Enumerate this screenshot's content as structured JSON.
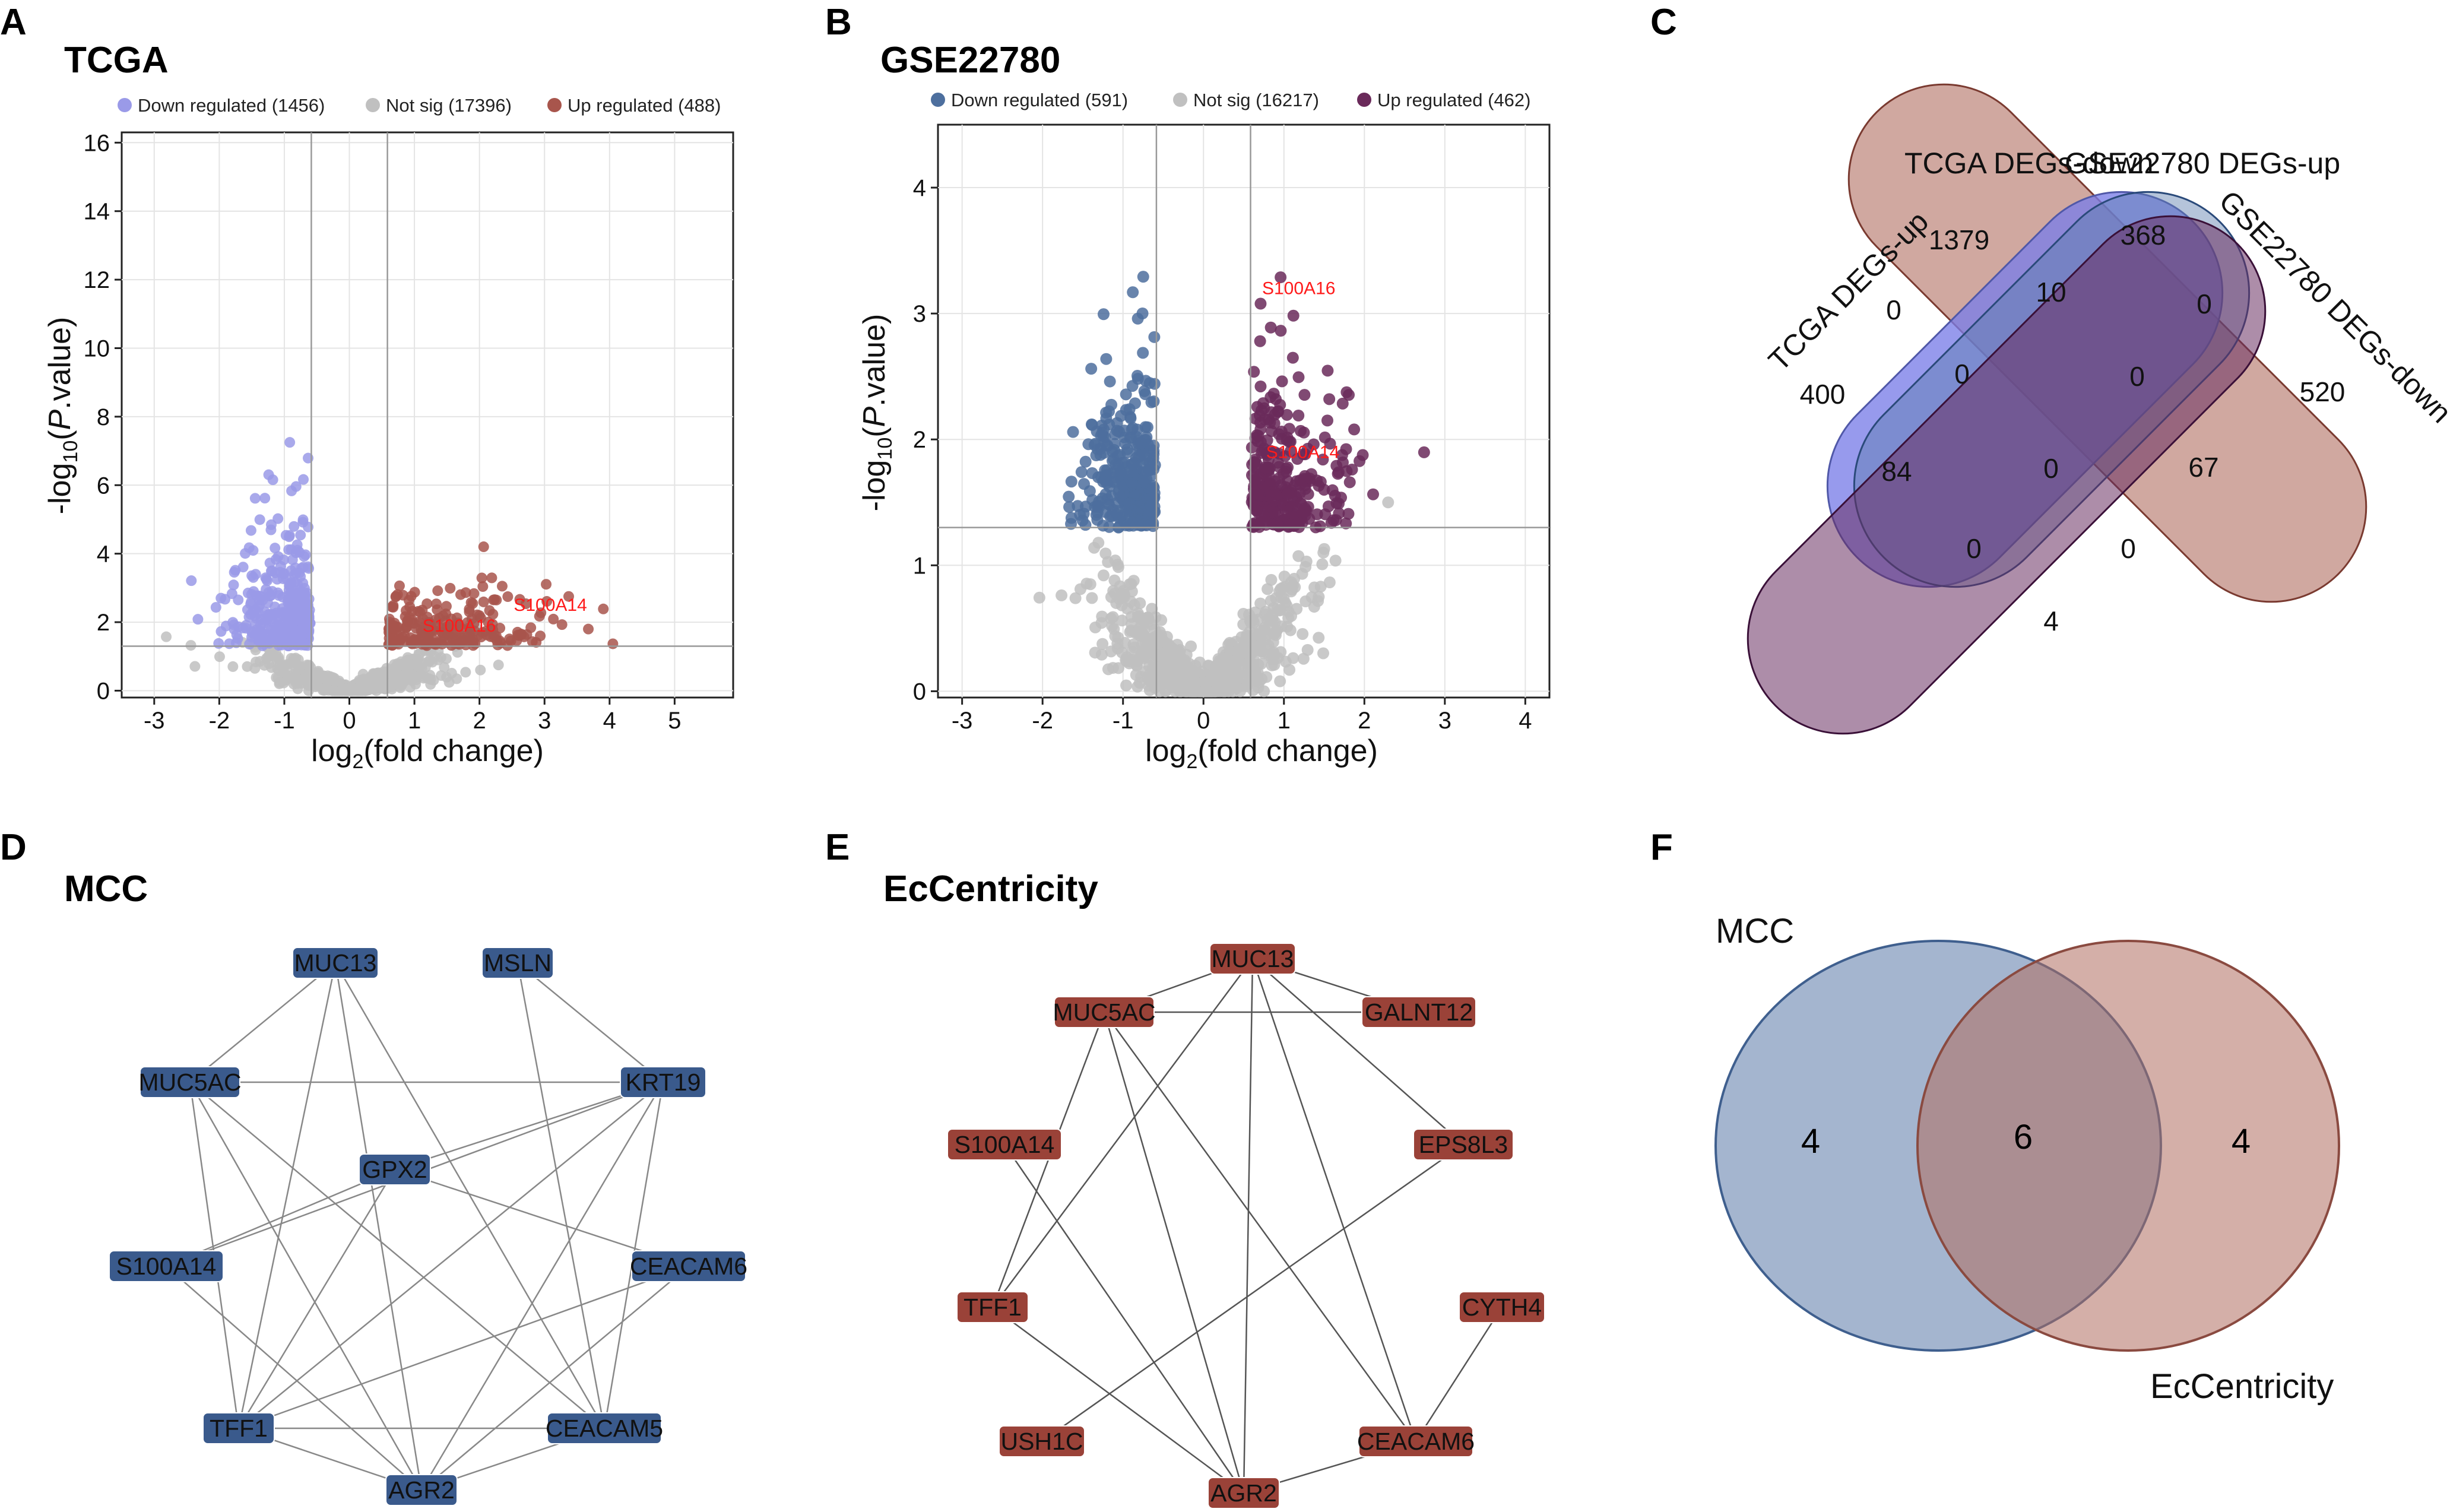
{
  "chart_data": [
    {
      "panel": "A",
      "type": "scatter",
      "title": "TCGA",
      "xlabel": "log2(fold change)",
      "ylabel": "-log10(P.value)",
      "xlim": [
        -3.5,
        5.9
      ],
      "ylim": [
        -0.2,
        16.3
      ],
      "xticks": [
        -3,
        -2,
        -1,
        0,
        1,
        2,
        3,
        4,
        5
      ],
      "yticks": [
        0,
        2,
        4,
        6,
        8,
        10,
        12,
        14,
        16
      ],
      "thresholds": {
        "x": [
          -0.585,
          0.585
        ],
        "y": 1.3
      },
      "legend": [
        {
          "label": "Down regulated (1456)",
          "color": "#9a9ae8"
        },
        {
          "label": "Not sig (17396)",
          "color": "#c0c0c0"
        },
        {
          "label": "Up regulated (488)",
          "color": "#a8554c"
        }
      ],
      "counts": {
        "down": 1456,
        "notsig": 17396,
        "up": 488
      },
      "labeled_points": [
        {
          "gene": "S100A14",
          "x": 2.8,
          "y": 2.5
        },
        {
          "gene": "S100A16",
          "x": 1.4,
          "y": 1.9
        }
      ]
    },
    {
      "panel": "B",
      "type": "scatter",
      "title": "GSE22780",
      "xlabel": "log2(fold change)",
      "ylabel": "-log10(P.value)",
      "xlim": [
        -3.3,
        4.3
      ],
      "ylim": [
        -0.05,
        4.5
      ],
      "xticks": [
        -3,
        -2,
        -1,
        0,
        1,
        2,
        3,
        4
      ],
      "yticks": [
        0,
        1,
        2,
        3,
        4
      ],
      "thresholds": {
        "x": [
          -0.585,
          0.585
        ],
        "y": 1.3
      },
      "legend": [
        {
          "label": "Down regulated (591)",
          "color": "#4d6f9e"
        },
        {
          "label": "Not sig (16217)",
          "color": "#c0c0c0"
        },
        {
          "label": "Up regulated (462)",
          "color": "#6a2a5a"
        }
      ],
      "counts": {
        "down": 591,
        "notsig": 16217,
        "up": 462
      },
      "labeled_points": [
        {
          "gene": "S100A16",
          "x": 0.95,
          "y": 3.2
        },
        {
          "gene": "S100A14",
          "x": 1.0,
          "y": 1.9
        }
      ]
    },
    {
      "panel": "C",
      "type": "venn",
      "sets": [
        "TCGA DEGs-up",
        "TCGA DEGs-down",
        "GSE22780 DEGs-up",
        "GSE22780 DEGs-down"
      ],
      "region_values": [
        "1379",
        "368",
        "0",
        "0",
        "10",
        "400",
        "0",
        "0",
        "520",
        "84",
        "0",
        "67",
        "0",
        "0",
        "4"
      ]
    },
    {
      "panel": "D",
      "type": "network",
      "title": "MCC",
      "nodes": [
        "MUC13",
        "MSLN",
        "MUC5AC",
        "KRT19",
        "GPX2",
        "S100A14",
        "CEACAM6",
        "TFF1",
        "CEACAM5",
        "AGR2"
      ]
    },
    {
      "panel": "E",
      "type": "network",
      "title": "EcCentricity",
      "nodes": [
        "MUC13",
        "MUC5AC",
        "GALNT12",
        "S100A14",
        "EPS8L3",
        "TFF1",
        "CYTH4",
        "USH1C",
        "CEACAM6",
        "AGR2"
      ]
    },
    {
      "panel": "F",
      "type": "venn",
      "sets": [
        "MCC",
        "EcCentricity"
      ],
      "values": {
        "left": "4",
        "both": "6",
        "right": "4"
      }
    }
  ],
  "panel_labels": {
    "a": "A",
    "b": "B",
    "c": "C",
    "d": "D",
    "e": "E",
    "f": "F"
  },
  "colors": {
    "up_tcga": "#a8554c",
    "down_tcga": "#9a9ae8",
    "up_geo": "#6a2a5a",
    "down_geo": "#4d6f9e",
    "ns": "#c0c0c0",
    "node_blue": "#3a5a8c",
    "node_red": "#9a4238"
  }
}
